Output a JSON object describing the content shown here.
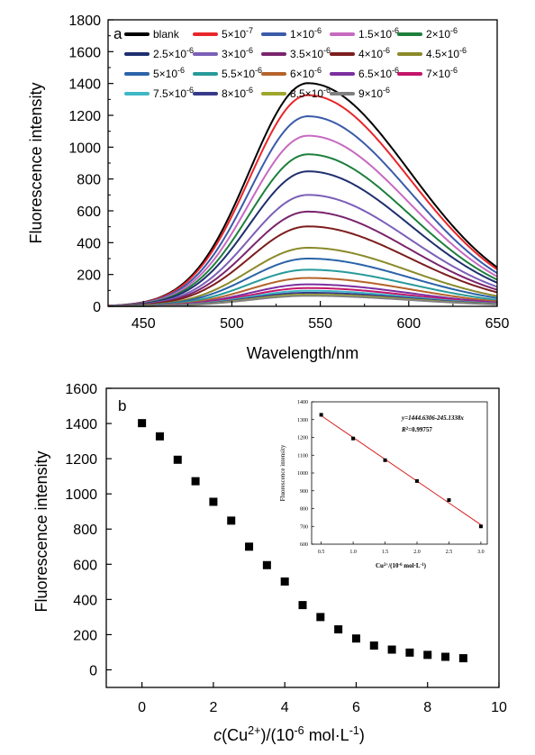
{
  "chart_data": [
    {
      "type": "line",
      "panel_label": "a",
      "xlabel": "Wavelength/nm",
      "ylabel": "Fluorescence intensity",
      "xlim": [
        430,
        650
      ],
      "ylim": [
        0,
        1800
      ],
      "xticks": [
        "450",
        "500",
        "550",
        "600",
        "650"
      ],
      "yticks": [
        "0",
        "200",
        "400",
        "600",
        "800",
        "1000",
        "1200",
        "1400",
        "1600",
        "1800"
      ],
      "peak_wavelength": 543,
      "grid": false,
      "legend_placement": "top, inside plot, 5 columns",
      "series": [
        {
          "name": "blank",
          "peak": 1402,
          "value_650": 245,
          "color": "#000000"
        },
        {
          "name": "5×10⁻⁷",
          "peak": 1327,
          "value_650": 232,
          "color": "#e8262a"
        },
        {
          "name": "1×10⁻⁶",
          "peak": 1194,
          "value_650": 209,
          "color": "#3a5ba9"
        },
        {
          "name": "1.5×10⁻⁶",
          "peak": 1072,
          "value_650": 188,
          "color": "#c769c0"
        },
        {
          "name": "2×10⁻⁶",
          "peak": 955,
          "value_650": 167,
          "color": "#1d7f3c"
        },
        {
          "name": "2.5×10⁻⁶",
          "peak": 848,
          "value_650": 148,
          "color": "#1f2f6f"
        },
        {
          "name": "3×10⁻⁶",
          "peak": 700,
          "value_650": 122,
          "color": "#7b5fb8"
        },
        {
          "name": "3.5×10⁻⁶",
          "peak": 595,
          "value_650": 104,
          "color": "#7a246d"
        },
        {
          "name": "4×10⁻⁶",
          "peak": 502,
          "value_650": 88,
          "color": "#7d1d1d"
        },
        {
          "name": "4.5×10⁻⁶",
          "peak": 368,
          "value_650": 64,
          "color": "#8a8a2a"
        },
        {
          "name": "5×10⁻⁶",
          "peak": 300,
          "value_650": 52,
          "color": "#2a63a8"
        },
        {
          "name": "5.5×10⁻⁶",
          "peak": 230,
          "value_650": 40,
          "color": "#279a9a"
        },
        {
          "name": "6×10⁻⁶",
          "peak": 178,
          "value_650": 31,
          "color": "#b5632a"
        },
        {
          "name": "6.5×10⁻⁶",
          "peak": 138,
          "value_650": 24,
          "color": "#7b2fa0"
        },
        {
          "name": "7×10⁻⁶",
          "peak": 115,
          "value_650": 20,
          "color": "#c3156a"
        },
        {
          "name": "7.5×10⁻⁶",
          "peak": 98,
          "value_650": 17,
          "color": "#3fb8c6"
        },
        {
          "name": "8×10⁻⁶",
          "peak": 85,
          "value_650": 15,
          "color": "#373a8a"
        },
        {
          "name": "8.5×10⁻⁶",
          "peak": 74,
          "value_650": 13,
          "color": "#9ea62e"
        },
        {
          "name": "9×10⁻⁶",
          "peak": 66,
          "value_650": 12,
          "color": "#808080"
        }
      ]
    },
    {
      "type": "scatter",
      "panel_label": "b",
      "xlabel_parts": [
        "c",
        "(Cu",
        "2+",
        ")/(10",
        "-6",
        " mol·L",
        "-1",
        ")"
      ],
      "ylabel": "Fluorescence intensity",
      "xlim": [
        -1,
        10
      ],
      "ylim": [
        -100,
        1600
      ],
      "xticks": [
        "0",
        "2",
        "4",
        "6",
        "8",
        "10"
      ],
      "yticks": [
        "0",
        "200",
        "400",
        "600",
        "800",
        "1000",
        "1200",
        "1400",
        "1600"
      ],
      "grid": false,
      "marker_color": "#000000",
      "x": [
        0,
        0.5,
        1,
        1.5,
        2,
        2.5,
        3,
        3.5,
        4,
        4.5,
        5,
        5.5,
        6,
        6.5,
        7,
        7.5,
        8,
        8.5,
        9
      ],
      "y": [
        1402,
        1327,
        1194,
        1072,
        955,
        848,
        700,
        595,
        502,
        368,
        300,
        230,
        178,
        138,
        115,
        98,
        85,
        74,
        66
      ]
    },
    {
      "type": "scatter",
      "role": "inset",
      "xlabel_parts": [
        "Cu",
        "2+",
        "/(10",
        "-6",
        " mol·L",
        "-1",
        ")"
      ],
      "ylabel": "Fluorescence intensity",
      "xlim": [
        0.35,
        3.1
      ],
      "ylim": [
        600,
        1400
      ],
      "xticks": [
        "0.5",
        "1.0",
        "1.5",
        "2.0",
        "2.5",
        "3.0"
      ],
      "yticks": [
        "600",
        "700",
        "800",
        "900",
        "1000",
        "1100",
        "1200",
        "1300",
        "1400"
      ],
      "equation": "y=1444.6306-245.1338x",
      "r2_label": "R",
      "r2_sup": "2",
      "r2_value": "=0.99757",
      "fit_intercept": 1444.6306,
      "fit_slope": -245.1338,
      "fit_color": "#d62020",
      "x": [
        0.5,
        1.0,
        1.5,
        2.0,
        2.5,
        3.0
      ],
      "y": [
        1327,
        1194,
        1072,
        955,
        848,
        700
      ]
    }
  ]
}
